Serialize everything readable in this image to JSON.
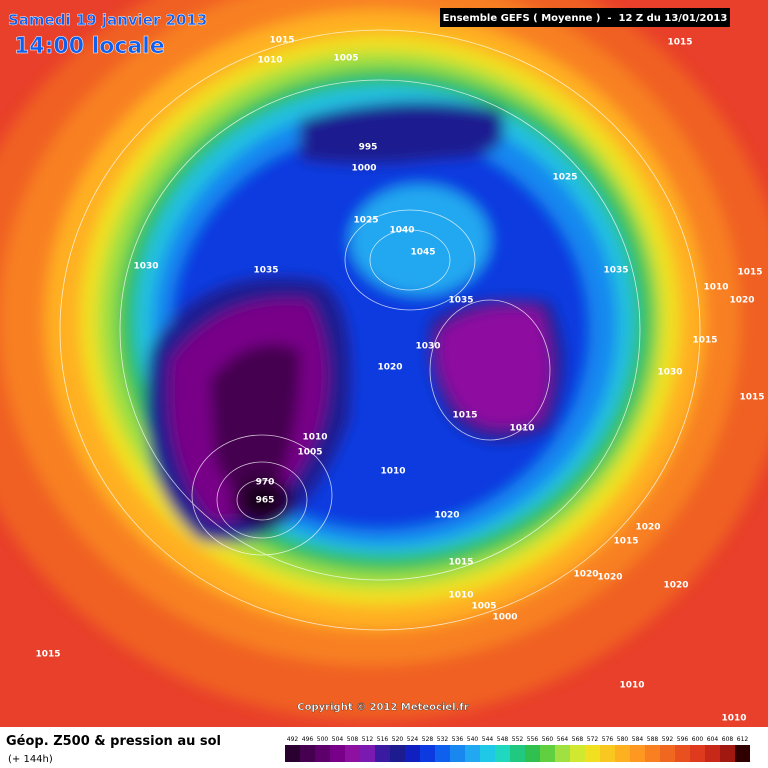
{
  "header": {
    "date": "Samedi 19 janvier 2013",
    "time": "14:00 locale",
    "run": "Ensemble GEFS ( Moyenne )  -  12 Z du 13/01/2013"
  },
  "isobar_labels": [
    "1015",
    "1010",
    "1005",
    "1015",
    "995",
    "1000",
    "1025",
    "1025",
    "1040",
    "1045",
    "1030",
    "1035",
    "1035",
    "1015",
    "1010",
    "1020",
    "1035",
    "1030",
    "1015",
    "1020",
    "1030",
    "1015",
    "1015",
    "1010",
    "1010",
    "1005",
    "1010",
    "970",
    "965",
    "1020",
    "1020",
    "1015",
    "1015",
    "1020",
    "1020",
    "1010",
    "1005",
    "1000",
    "1020",
    "1015",
    "1010",
    "1010"
  ],
  "copyright": "Copyright © 2012 Meteociel.fr",
  "legend": {
    "title": "Géop. Z500 & pression au sol",
    "subtitle": "(+ 144h)",
    "ticks": [
      492,
      496,
      500,
      504,
      508,
      512,
      516,
      520,
      524,
      528,
      532,
      536,
      540,
      544,
      548,
      552,
      556,
      560,
      564,
      568,
      572,
      576,
      580,
      584,
      588,
      592,
      596,
      600,
      604,
      608,
      612
    ],
    "colors": [
      "#2a0030",
      "#45004f",
      "#5e006b",
      "#780088",
      "#8e10a0",
      "#7a1ab0",
      "#3a1aa0",
      "#1c1c90",
      "#1020c0",
      "#0c3ae0",
      "#1060f0",
      "#1888f0",
      "#20a8f0",
      "#20c8e8",
      "#20d8c0",
      "#20c880",
      "#30c050",
      "#60d040",
      "#a0e040",
      "#d0e830",
      "#f0e020",
      "#f8c820",
      "#ffb020",
      "#ff9820",
      "#f88020",
      "#f06820",
      "#e85020",
      "#e03a1e",
      "#c82818",
      "#a01810",
      "#300000"
    ]
  }
}
